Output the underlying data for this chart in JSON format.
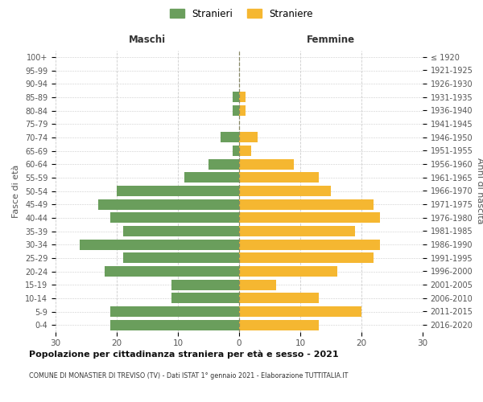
{
  "age_groups": [
    "0-4",
    "5-9",
    "10-14",
    "15-19",
    "20-24",
    "25-29",
    "30-34",
    "35-39",
    "40-44",
    "45-49",
    "50-54",
    "55-59",
    "60-64",
    "65-69",
    "70-74",
    "75-79",
    "80-84",
    "85-89",
    "90-94",
    "95-99",
    "100+"
  ],
  "birth_years": [
    "2016-2020",
    "2011-2015",
    "2006-2010",
    "2001-2005",
    "1996-2000",
    "1991-1995",
    "1986-1990",
    "1981-1985",
    "1976-1980",
    "1971-1975",
    "1966-1970",
    "1961-1965",
    "1956-1960",
    "1951-1955",
    "1946-1950",
    "1941-1945",
    "1936-1940",
    "1931-1935",
    "1926-1930",
    "1921-1925",
    "≤ 1920"
  ],
  "maschi": [
    21,
    21,
    11,
    11,
    22,
    19,
    26,
    19,
    21,
    23,
    20,
    9,
    5,
    1,
    3,
    0,
    1,
    1,
    0,
    0,
    0
  ],
  "femmine": [
    13,
    20,
    13,
    6,
    16,
    22,
    23,
    19,
    23,
    22,
    15,
    13,
    9,
    2,
    3,
    0,
    1,
    1,
    0,
    0,
    0
  ],
  "color_maschi": "#6a9e5c",
  "color_femmine": "#f5b731",
  "title": "Popolazione per cittadinanza straniera per età e sesso - 2021",
  "subtitle": "COMUNE DI MONASTIER DI TREVISO (TV) - Dati ISTAT 1° gennaio 2021 - Elaborazione TUTTITALIA.IT",
  "ylabel_left": "Fasce di età",
  "ylabel_right": "Anni di nascita",
  "xlabel_maschi": "Maschi",
  "xlabel_femmine": "Femmine",
  "legend_maschi": "Stranieri",
  "legend_femmine": "Straniere",
  "xlim": 30,
  "background_color": "#ffffff",
  "grid_color": "#cccccc"
}
